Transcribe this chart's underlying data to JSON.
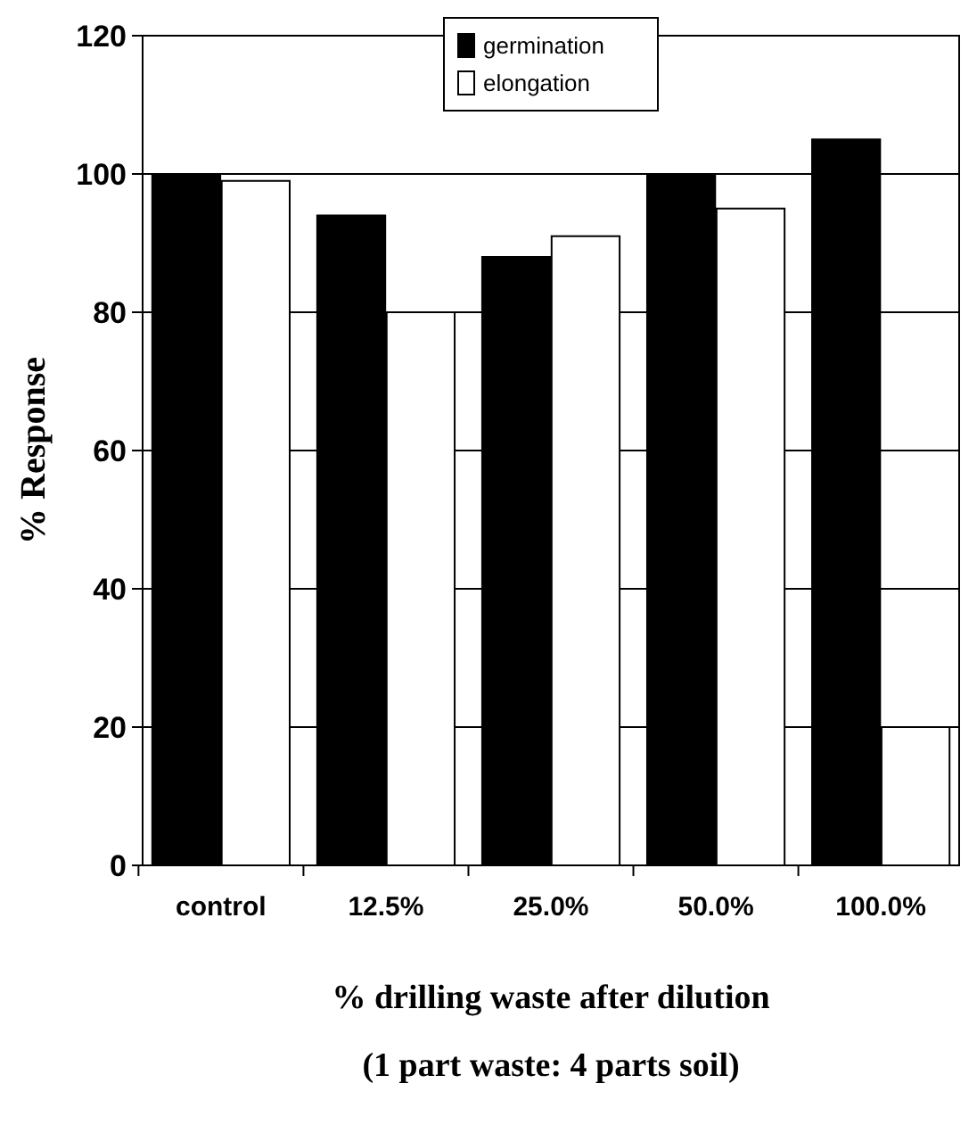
{
  "chart_data": {
    "type": "bar",
    "xlabel": "% drilling waste after dilution\n(1 part waste: 4 parts soil)",
    "ylabel": "% Response",
    "categories": [
      "control",
      "12.5%",
      "25.0%",
      "50.0%",
      "100.0%"
    ],
    "series": [
      {
        "name": "germination",
        "color": "#000000",
        "values": [
          100,
          94,
          88,
          100,
          105
        ]
      },
      {
        "name": "elongation",
        "color": "#ffffff",
        "values": [
          99,
          80,
          91,
          95,
          20
        ]
      }
    ],
    "ylim": [
      0,
      120
    ],
    "yticks": [
      0,
      20,
      40,
      60,
      80,
      100,
      120
    ],
    "grid": "y",
    "legend": "top"
  }
}
